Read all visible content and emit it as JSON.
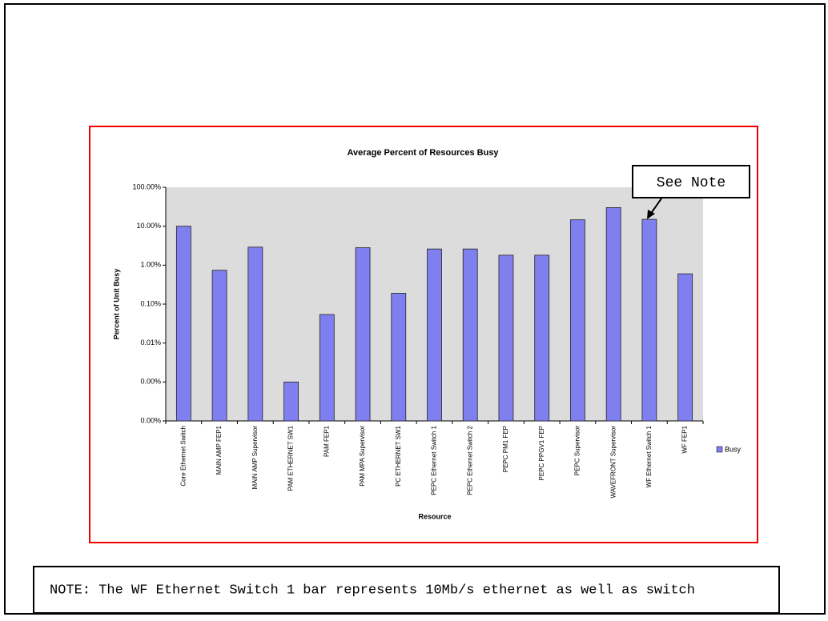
{
  "chart_data": {
    "type": "bar",
    "title": "Average Percent of Resources Busy",
    "x_label": "Resource",
    "y_label": "Percent of Unit Busy",
    "categories": [
      "Core Ethernet Switch",
      "MAIN AMP FEP1",
      "MAIN AMP Supervisor",
      "PAM ETHERNET SW1",
      "PAM FEP1",
      "PAM MPA Supervisor",
      "PC ETHERNET SW1",
      "PEPC Ethernet Switch 1",
      "PEPC Ethernet Switch 2",
      "PEPC PM1 FEP",
      "PEPC PPGV1 FEP",
      "PEPC Supervisor",
      "WAVEFRONT Supervisor",
      "WF Ethernet Switch 1",
      "WF FEP1"
    ],
    "series": [
      {
        "name": "Busy",
        "color": "#7f7ff0",
        "values": [
          10,
          0.74,
          2.9,
          0.001,
          0.054,
          2.8,
          0.19,
          2.6,
          2.6,
          1.8,
          1.8,
          14.6,
          30,
          15,
          0.6
        ]
      }
    ],
    "log_scale": true,
    "ylim": [
      0.0001,
      100
    ],
    "yticks": [
      {
        "value": 100,
        "label": "100.00%"
      },
      {
        "value": 10,
        "label": "10.00%"
      },
      {
        "value": 1,
        "label": "1.00%"
      },
      {
        "value": 0.1,
        "label": "0.10%"
      },
      {
        "value": 0.01,
        "label": "0.01%"
      },
      {
        "value": 0.001,
        "label": "0.00%"
      },
      {
        "value": 0.0001,
        "label": "0.00%"
      }
    ],
    "annotation": "See Note"
  },
  "note": "NOTE:  The WF Ethernet Switch 1 bar represents 10Mb/s ethernet as well as switch"
}
